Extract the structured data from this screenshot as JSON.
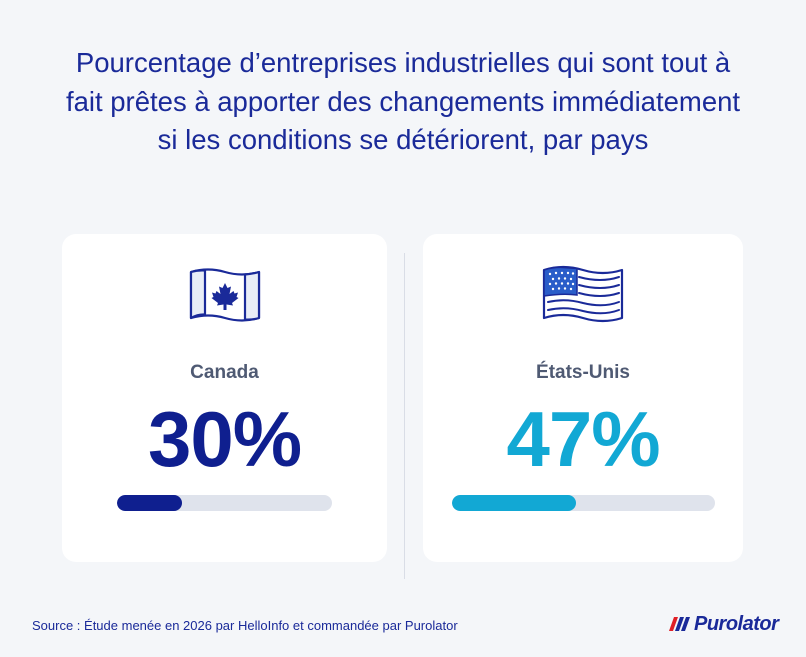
{
  "title": "Pourcentage d’entreprises industrielles qui sont tout à fait prêtes à apporter des changements immédiatement si les conditions se détériorent, par pays",
  "chart_data": {
    "type": "bar",
    "categories": [
      "Canada",
      "États-Unis"
    ],
    "values": [
      30,
      47
    ],
    "value_labels": [
      "30%",
      "47%"
    ],
    "unit": "%",
    "ylim": [
      0,
      100
    ],
    "colors": [
      "#0f1f8f",
      "#12a8d4"
    ]
  },
  "cards": [
    {
      "country": "Canada",
      "value_label": "30%",
      "value": 30,
      "color": "#0f1f8f",
      "flag_icon": "canada-flag-icon"
    },
    {
      "country": "États-Unis",
      "value_label": "47%",
      "value": 47,
      "color": "#12a8d4",
      "flag_icon": "usa-flag-icon"
    }
  ],
  "footer": {
    "source": "Source : Étude menée en 2026 par HelloInfo et commandée par Purolator",
    "logo_text": "Purolator"
  },
  "colors": {
    "background": "#f4f6f9",
    "brand_blue": "#1a2a99",
    "brand_red": "#e01f26",
    "track": "#dfe3ec"
  }
}
